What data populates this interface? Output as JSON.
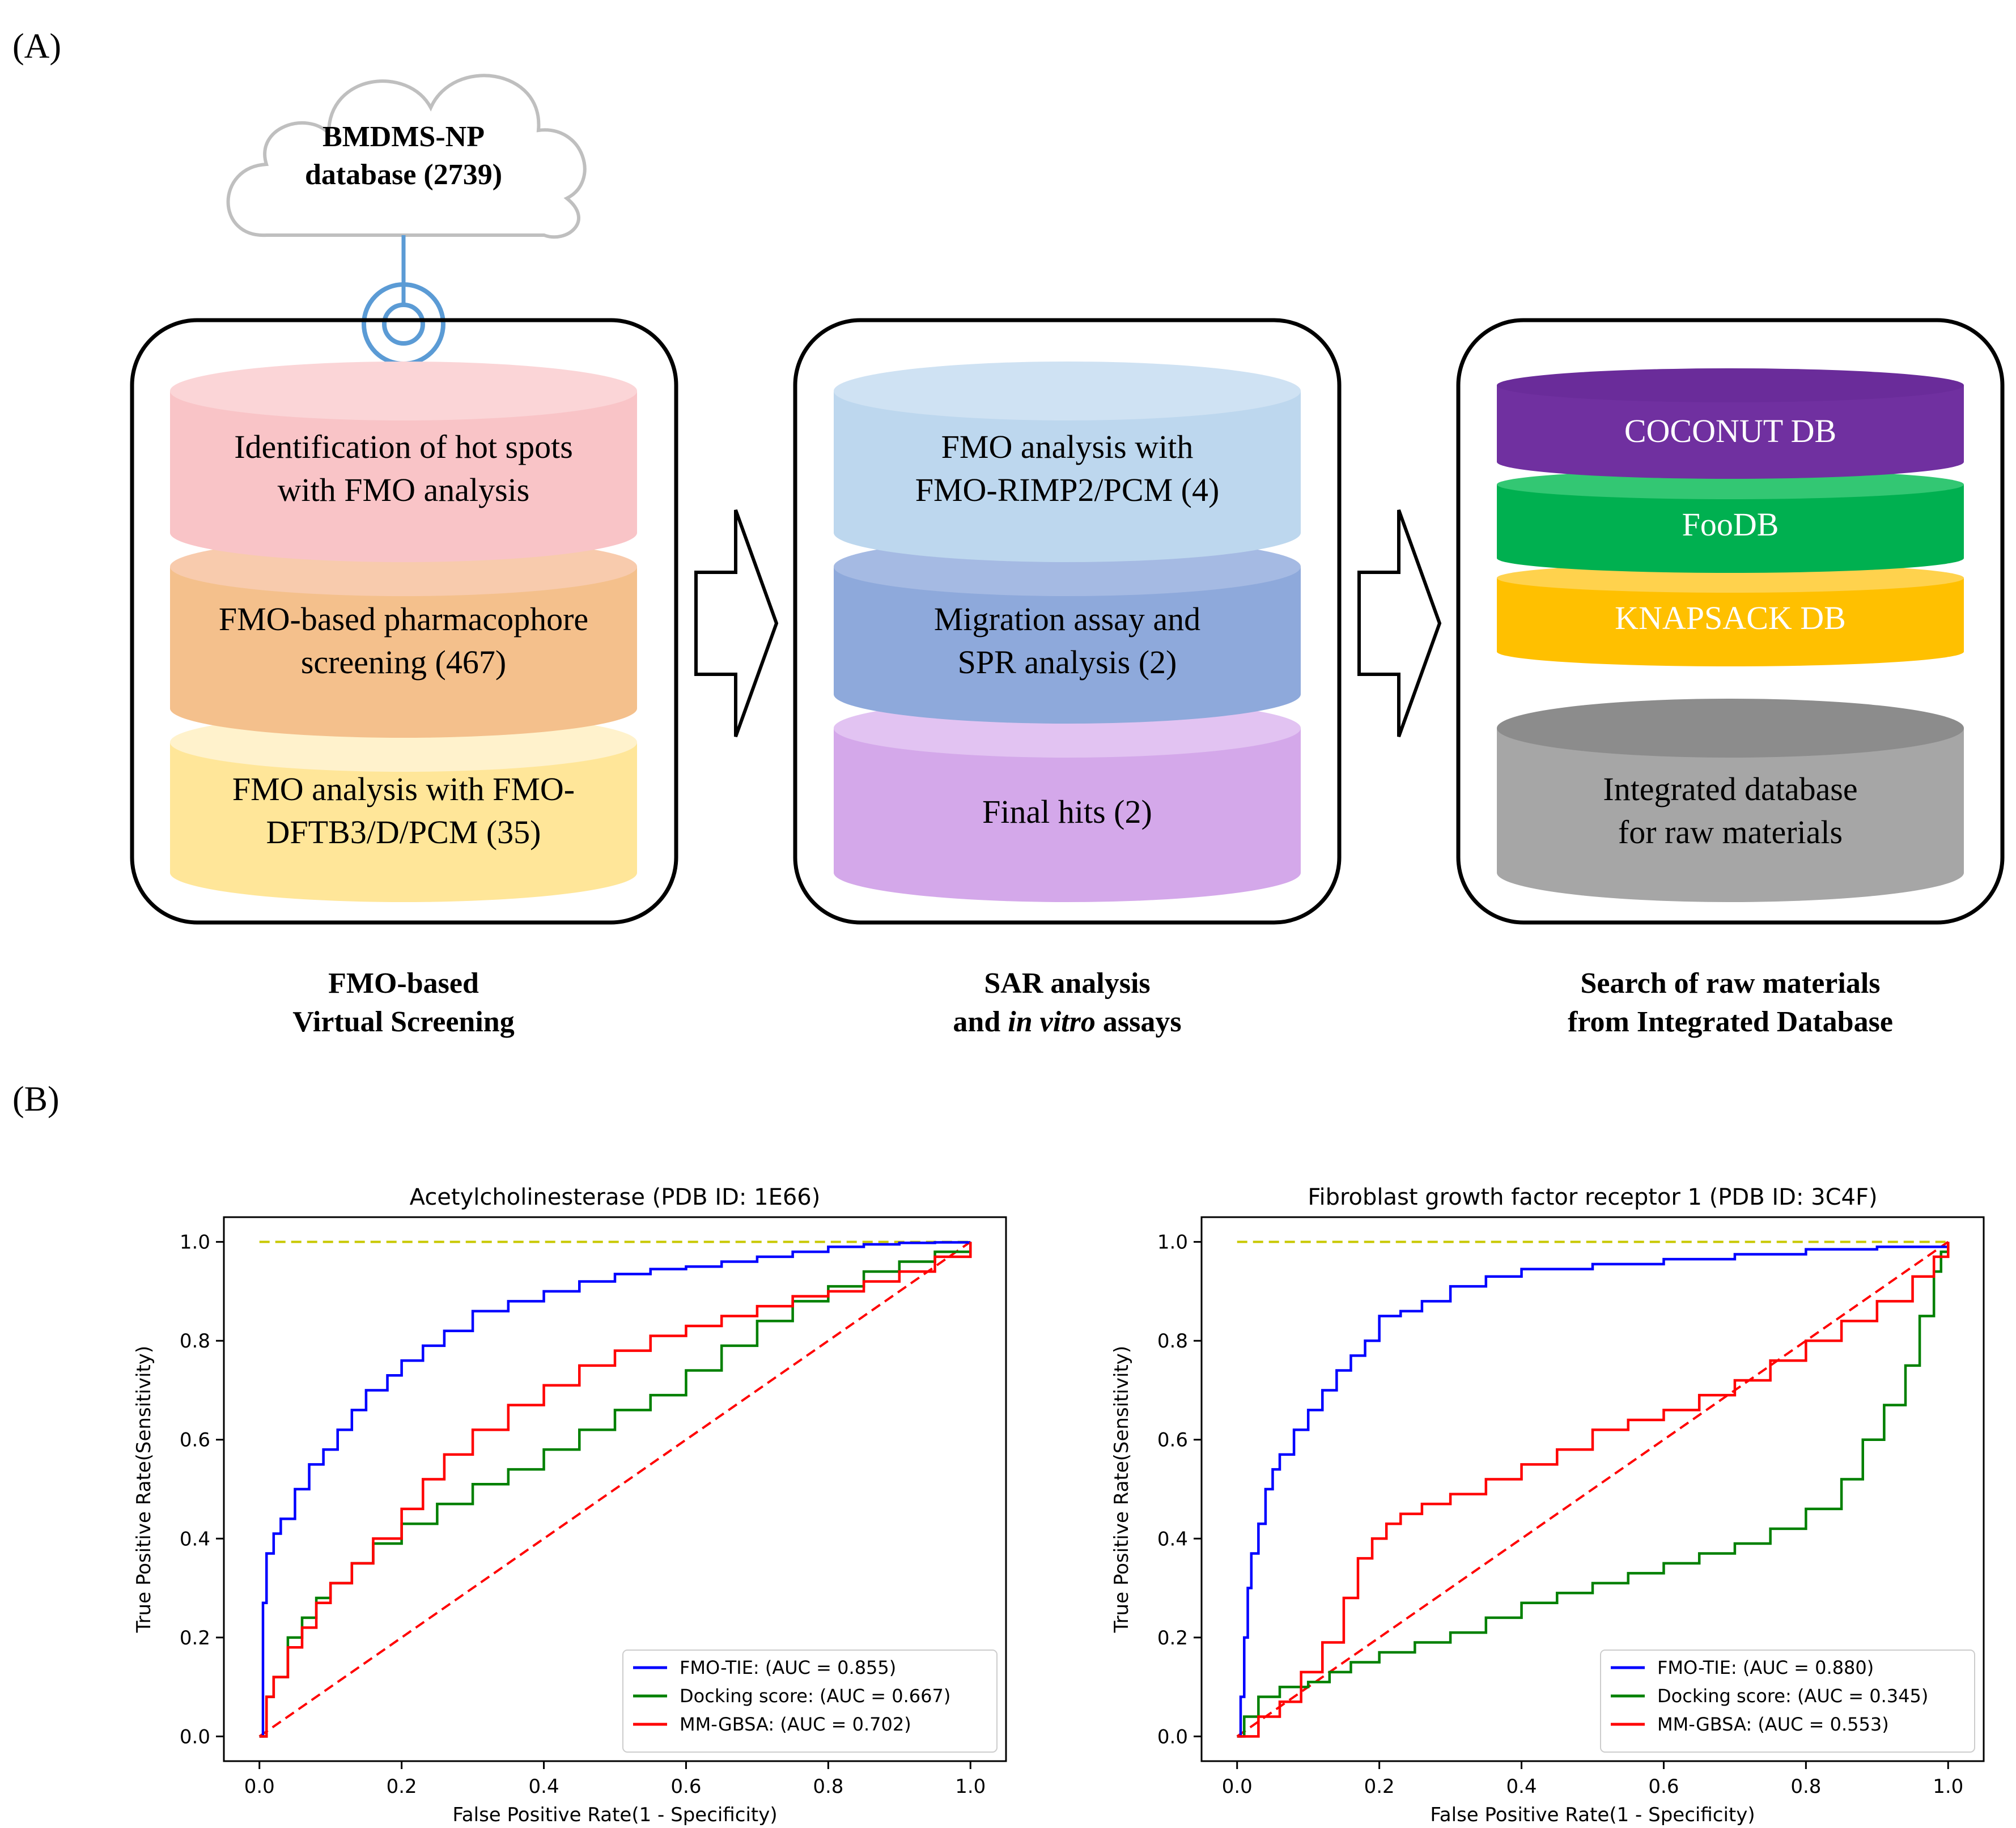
{
  "panel_a": {
    "label": "(A)",
    "cloud": {
      "line1": "BMDMS-NP",
      "line2": "database (2739)"
    },
    "stage1": {
      "layers": [
        {
          "line1": "Identification  of hot spots",
          "line2": "with FMO analysis",
          "color": "#F9C4C7"
        },
        {
          "line1": "FMO-based pharmacophore",
          "line2": "screening (467)",
          "color": "#F4C08C"
        },
        {
          "line1": "FMO analysis with FMO-",
          "line2": "DFTB3/D/PCM (35)",
          "color": "#FFE699"
        }
      ],
      "caption_line1": "FMO-based",
      "caption_line2": "Virtual Screening"
    },
    "stage2": {
      "layers": [
        {
          "line1": "FMO analysis with",
          "line2": "FMO-RIMP2/PCM (4)",
          "color": "#BDD7EE"
        },
        {
          "line1": "Migration  assay and",
          "line2": "SPR analysis (2)",
          "color": "#8EA9DB"
        },
        {
          "line1": "Final hits (2)",
          "line2": "",
          "color": "#D4A8EA"
        }
      ],
      "caption_line1": "SAR analysis",
      "caption_pre": "and ",
      "caption_italic": "in vitro",
      "caption_post": " assays"
    },
    "stage3": {
      "layers": [
        {
          "text": "COCONUT DB",
          "color": "#7030A0"
        },
        {
          "text": "FooDB",
          "color": "#00B050"
        },
        {
          "text": "KNAPSACK DB",
          "color": "#FFC000"
        }
      ],
      "integrated": {
        "line1": "Integrated database",
        "line2": "for raw materials",
        "color": "#A6A6A6"
      },
      "caption_line1": "Search of raw materials",
      "caption_line2": "from Integrated Database"
    }
  },
  "panel_b": {
    "label": "(B)",
    "chart_data": [
      {
        "type": "line",
        "title": "Acetylcholinesterase (PDB ID: 1E66)",
        "xlabel": "False Positive Rate(1 - Specificity)",
        "ylabel": "True Positive Rate(Sensitivity)",
        "xlim": [
          -0.05,
          1.05
        ],
        "ylim": [
          -0.05,
          1.05
        ],
        "xticks": [
          "0.0",
          "0.2",
          "0.4",
          "0.6",
          "0.8",
          "1.0"
        ],
        "yticks": [
          "0.0",
          "0.2",
          "0.4",
          "0.6",
          "0.8",
          "1.0"
        ],
        "legend_position": "lower-right",
        "reference_lines": [
          {
            "name": "perfect",
            "color": "#C8C800",
            "x": [
              0,
              1
            ],
            "y": [
              1,
              1
            ]
          },
          {
            "name": "random",
            "color": "#FF0000",
            "x": [
              0,
              1
            ],
            "y": [
              0,
              1
            ]
          }
        ],
        "series": [
          {
            "name": "FMO-TIE",
            "auc_label": "(AUC = 0.855)",
            "color": "#0000FF",
            "x": [
              0,
              0.005,
              0.01,
              0.02,
              0.03,
              0.05,
              0.07,
              0.09,
              0.11,
              0.13,
              0.15,
              0.18,
              0.2,
              0.23,
              0.26,
              0.3,
              0.35,
              0.4,
              0.45,
              0.5,
              0.55,
              0.6,
              0.65,
              0.7,
              0.75,
              0.8,
              0.85,
              0.9,
              0.95,
              1.0
            ],
            "y": [
              0,
              0.27,
              0.37,
              0.41,
              0.44,
              0.5,
              0.55,
              0.58,
              0.62,
              0.66,
              0.7,
              0.73,
              0.76,
              0.79,
              0.82,
              0.86,
              0.88,
              0.9,
              0.92,
              0.935,
              0.945,
              0.95,
              0.96,
              0.97,
              0.98,
              0.99,
              0.995,
              0.998,
              0.999,
              1.0
            ]
          },
          {
            "name": "Docking score",
            "auc_label": "(AUC = 0.667)",
            "color": "#008000",
            "x": [
              0,
              0.01,
              0.02,
              0.04,
              0.06,
              0.08,
              0.1,
              0.13,
              0.16,
              0.2,
              0.25,
              0.3,
              0.35,
              0.4,
              0.45,
              0.5,
              0.55,
              0.6,
              0.65,
              0.7,
              0.75,
              0.8,
              0.85,
              0.9,
              0.95,
              1.0
            ],
            "y": [
              0,
              0.08,
              0.12,
              0.2,
              0.24,
              0.28,
              0.31,
              0.35,
              0.39,
              0.43,
              0.47,
              0.51,
              0.54,
              0.58,
              0.62,
              0.66,
              0.69,
              0.74,
              0.79,
              0.84,
              0.88,
              0.91,
              0.94,
              0.96,
              0.98,
              1.0
            ]
          },
          {
            "name": "MM-GBSA",
            "auc_label": "(AUC = 0.702)",
            "color": "#FF0000",
            "x": [
              0,
              0.01,
              0.02,
              0.04,
              0.06,
              0.08,
              0.1,
              0.13,
              0.16,
              0.2,
              0.23,
              0.26,
              0.3,
              0.35,
              0.4,
              0.45,
              0.5,
              0.55,
              0.6,
              0.65,
              0.7,
              0.75,
              0.8,
              0.85,
              0.9,
              0.95,
              1.0
            ],
            "y": [
              0,
              0.08,
              0.12,
              0.18,
              0.22,
              0.27,
              0.31,
              0.35,
              0.4,
              0.46,
              0.52,
              0.57,
              0.62,
              0.67,
              0.71,
              0.75,
              0.78,
              0.81,
              0.83,
              0.85,
              0.87,
              0.89,
              0.9,
              0.92,
              0.94,
              0.97,
              1.0
            ]
          }
        ]
      },
      {
        "type": "line",
        "title": "Fibroblast growth factor receptor 1 (PDB ID: 3C4F)",
        "xlabel": "False Positive Rate(1 - Specificity)",
        "ylabel": "True Positive Rate(Sensitivity)",
        "xlim": [
          -0.05,
          1.05
        ],
        "ylim": [
          -0.05,
          1.05
        ],
        "xticks": [
          "0.0",
          "0.2",
          "0.4",
          "0.6",
          "0.8",
          "1.0"
        ],
        "yticks": [
          "0.0",
          "0.2",
          "0.4",
          "0.6",
          "0.8",
          "1.0"
        ],
        "legend_position": "lower-right",
        "reference_lines": [
          {
            "name": "perfect",
            "color": "#C8C800",
            "x": [
              0,
              1
            ],
            "y": [
              1,
              1
            ]
          },
          {
            "name": "random",
            "color": "#FF0000",
            "x": [
              0,
              1
            ],
            "y": [
              0,
              1
            ]
          }
        ],
        "series": [
          {
            "name": "FMO-TIE",
            "auc_label": "(AUC = 0.880)",
            "color": "#0000FF",
            "x": [
              0,
              0.005,
              0.01,
              0.015,
              0.02,
              0.03,
              0.04,
              0.05,
              0.06,
              0.08,
              0.1,
              0.12,
              0.14,
              0.16,
              0.18,
              0.2,
              0.23,
              0.26,
              0.3,
              0.35,
              0.4,
              0.5,
              0.6,
              0.7,
              0.8,
              0.9,
              0.95,
              0.98,
              1.0
            ],
            "y": [
              0,
              0.08,
              0.2,
              0.3,
              0.37,
              0.43,
              0.5,
              0.54,
              0.57,
              0.62,
              0.66,
              0.7,
              0.74,
              0.77,
              0.8,
              0.85,
              0.86,
              0.88,
              0.91,
              0.93,
              0.945,
              0.955,
              0.965,
              0.975,
              0.985,
              0.99,
              0.99,
              0.99,
              1.0
            ]
          },
          {
            "name": "Docking score",
            "auc_label": "(AUC = 0.345)",
            "color": "#008000",
            "x": [
              0,
              0.01,
              0.03,
              0.06,
              0.1,
              0.13,
              0.16,
              0.2,
              0.25,
              0.3,
              0.35,
              0.4,
              0.45,
              0.5,
              0.55,
              0.6,
              0.65,
              0.7,
              0.75,
              0.8,
              0.85,
              0.88,
              0.91,
              0.94,
              0.96,
              0.98,
              0.99,
              1.0
            ],
            "y": [
              0,
              0.04,
              0.08,
              0.1,
              0.11,
              0.13,
              0.15,
              0.17,
              0.19,
              0.21,
              0.24,
              0.27,
              0.29,
              0.31,
              0.33,
              0.35,
              0.37,
              0.39,
              0.42,
              0.46,
              0.52,
              0.6,
              0.67,
              0.75,
              0.85,
              0.94,
              0.98,
              1.0
            ]
          },
          {
            "name": "MM-GBSA",
            "auc_label": "(AUC = 0.553)",
            "color": "#FF0000",
            "x": [
              0,
              0.03,
              0.06,
              0.09,
              0.12,
              0.15,
              0.17,
              0.19,
              0.21,
              0.23,
              0.26,
              0.3,
              0.35,
              0.4,
              0.45,
              0.5,
              0.55,
              0.6,
              0.65,
              0.7,
              0.75,
              0.8,
              0.85,
              0.9,
              0.95,
              0.98,
              1.0
            ],
            "y": [
              0,
              0.04,
              0.07,
              0.13,
              0.19,
              0.28,
              0.36,
              0.4,
              0.43,
              0.45,
              0.47,
              0.49,
              0.52,
              0.55,
              0.58,
              0.62,
              0.64,
              0.66,
              0.69,
              0.72,
              0.76,
              0.8,
              0.84,
              0.88,
              0.93,
              0.97,
              1.0
            ]
          }
        ]
      }
    ]
  }
}
